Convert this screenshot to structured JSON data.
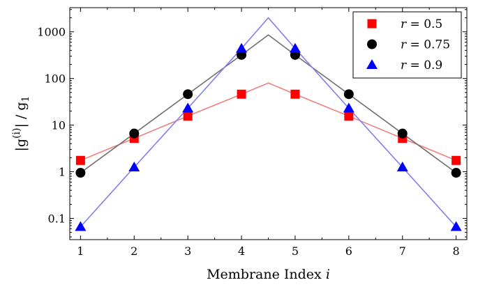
{
  "chart_data": {
    "type": "scatter",
    "title": "",
    "xlabel": "Membrane Index",
    "xlabel_var": "i",
    "ylabel": {
      "prefix": "|g",
      "sup": "(i)",
      "middle": "| / g",
      "sub": "1"
    },
    "y_scale": "log",
    "xlim": [
      0.8,
      8.2
    ],
    "ylim": [
      0.035,
      3300
    ],
    "x_ticks": [
      1,
      2,
      3,
      4,
      5,
      6,
      7,
      8
    ],
    "x_tick_labels": [
      "1",
      "2",
      "3",
      "4",
      "5",
      "6",
      "7",
      "8"
    ],
    "y_ticks": [
      0.1,
      1,
      10,
      100,
      1000
    ],
    "y_tick_labels": [
      "0.1",
      "1",
      "10",
      "100",
      "1000"
    ],
    "grid": false,
    "legend_position": "top-right",
    "series": [
      {
        "name": "r = 0.5",
        "name_var": "r",
        "name_value": " = 0.5",
        "marker": "square",
        "marker_color": "#ff0000",
        "line_color": "#f08080",
        "points": {
          "x": [
            1,
            2,
            3,
            4,
            5,
            6,
            7,
            8
          ],
          "y": [
            1.75,
            5.2,
            15.6,
            46,
            46,
            15.6,
            5.2,
            1.75
          ]
        },
        "line": {
          "x": [
            1,
            2,
            3,
            4,
            4.5,
            5,
            6,
            7,
            8
          ],
          "y": [
            1.75,
            5.2,
            15.6,
            46,
            80,
            46,
            15.6,
            5.2,
            1.75
          ]
        }
      },
      {
        "name": "r = 0.75",
        "name_var": "r",
        "name_value": " = 0.75",
        "marker": "circle",
        "marker_color": "#000000",
        "line_color": "#707070",
        "points": {
          "x": [
            1,
            2,
            3,
            4,
            5,
            6,
            7,
            8
          ],
          "y": [
            0.95,
            6.6,
            46,
            320,
            320,
            46,
            6.6,
            0.95
          ]
        },
        "line": {
          "x": [
            1,
            2,
            3,
            4,
            4.5,
            5,
            6,
            7,
            8
          ],
          "y": [
            0.95,
            6.6,
            46,
            320,
            860,
            320,
            46,
            6.6,
            0.95
          ]
        }
      },
      {
        "name": "r = 0.9",
        "name_var": "r",
        "name_value": " = 0.9",
        "marker": "triangle",
        "marker_color": "#0000ff",
        "line_color": "#8080ee",
        "points": {
          "x": [
            1,
            2,
            3,
            4,
            5,
            6,
            7,
            8
          ],
          "y": [
            0.066,
            1.25,
            23,
            440,
            440,
            23,
            1.25,
            0.066
          ]
        },
        "line": {
          "x": [
            1,
            2,
            3,
            4,
            4.5,
            5,
            6,
            7,
            8
          ],
          "y": [
            0.066,
            1.25,
            23,
            440,
            2000,
            440,
            23,
            1.25,
            0.066
          ]
        }
      }
    ]
  }
}
